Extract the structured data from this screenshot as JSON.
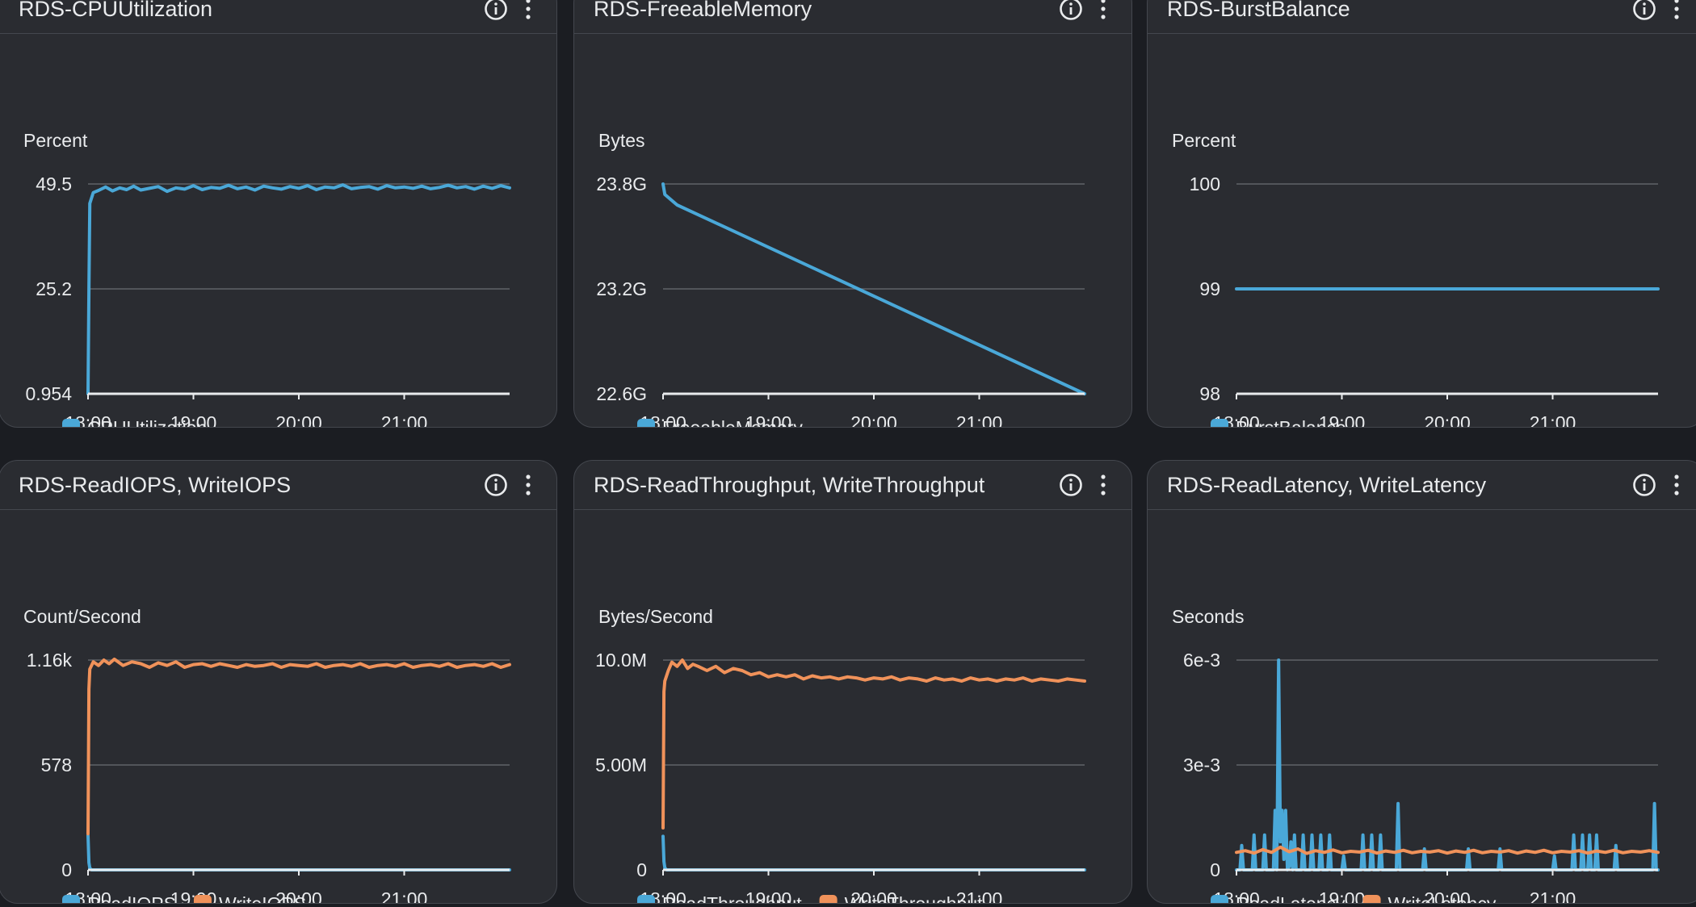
{
  "widgets": [
    {
      "title": "RDS-CPUUtilization",
      "chart_data": {
        "type": "line",
        "ylabel": "Percent",
        "ylim": [
          0.954,
          49.5
        ],
        "yticks": [
          "49.5",
          "25.2",
          "0.954"
        ],
        "xlim": [
          0,
          240
        ],
        "xticks": [
          "18:00",
          "19:00",
          "20:00",
          "21:00"
        ],
        "series": [
          {
            "name": "CPUUtilization",
            "color": "#4aa8d8",
            "x": [
              0,
              0.5,
              1,
              3,
              6,
              10,
              14,
              18,
              22,
              26,
              30,
              35,
              40,
              45,
              50,
              55,
              60,
              65,
              70,
              75,
              80,
              85,
              90,
              95,
              100,
              105,
              110,
              115,
              120,
              125,
              130,
              135,
              140,
              145,
              150,
              155,
              160,
              165,
              170,
              175,
              180,
              185,
              190,
              195,
              200,
              205,
              210,
              215,
              220,
              225,
              230,
              235,
              240
            ],
            "values": [
              0.954,
              25,
              45,
              47.5,
              48,
              48.8,
              47.9,
              48.6,
              48.2,
              49,
              48.1,
              48.5,
              48.9,
              47.8,
              48.6,
              48.3,
              49.1,
              48.2,
              48.7,
              48.5,
              49.2,
              48.4,
              48.8,
              48.1,
              49,
              48.6,
              48.3,
              48.9,
              48.5,
              49.1,
              48.2,
              48.8,
              48.6,
              49.3,
              48.4,
              48.7,
              48.9,
              48.3,
              49.1,
              48.6,
              48.8,
              48.5,
              49,
              48.4,
              48.7,
              49.2,
              48.6,
              48.9,
              48.3,
              49,
              48.5,
              49.1,
              48.6
            ]
          }
        ]
      }
    },
    {
      "title": "RDS-FreeableMemory",
      "chart_data": {
        "type": "line",
        "ylabel": "Bytes",
        "ylim": [
          22.6,
          23.8
        ],
        "yticks": [
          "23.8G",
          "23.2G",
          "22.6G"
        ],
        "xlim": [
          0,
          240
        ],
        "xticks": [
          "18:00",
          "19:00",
          "20:00",
          "21:00"
        ],
        "series": [
          {
            "name": "FreeableMemory",
            "color": "#4aa8d8",
            "x": [
              0,
              1,
              8,
              240
            ],
            "values": [
              23.8,
              23.74,
              23.68,
              22.6
            ]
          }
        ]
      }
    },
    {
      "title": "RDS-BurstBalance",
      "chart_data": {
        "type": "line",
        "ylabel": "Percent",
        "ylim": [
          98,
          100
        ],
        "yticks": [
          "100",
          "99",
          "98"
        ],
        "xlim": [
          0,
          240
        ],
        "xticks": [
          "18:00",
          "19:00",
          "20:00",
          "21:00"
        ],
        "series": [
          {
            "name": "BurstBalance",
            "color": "#4aa8d8",
            "x": [
              0,
              240
            ],
            "values": [
              99,
              99
            ]
          }
        ]
      }
    },
    {
      "title": "RDS-ReadIOPS, WriteIOPS",
      "chart_data": {
        "type": "line",
        "ylabel": "Count/Second",
        "ylim": [
          0,
          1160
        ],
        "yticks": [
          "1.16k",
          "578",
          "0"
        ],
        "xlim": [
          0,
          240
        ],
        "xticks": [
          "18:00",
          "19:00",
          "20:00",
          "21:00"
        ],
        "series": [
          {
            "name": "ReadIOPS",
            "color": "#4aa8d8",
            "x": [
              0,
              0.5,
              1,
              2,
              240
            ],
            "values": [
              190,
              40,
              10,
              0,
              0
            ]
          },
          {
            "name": "WriteIOPS",
            "color": "#f0925a",
            "x": [
              0,
              0.5,
              1,
              3,
              6,
              9,
              12,
              15,
              20,
              25,
              30,
              35,
              40,
              45,
              50,
              55,
              60,
              65,
              70,
              75,
              80,
              85,
              90,
              95,
              100,
              105,
              110,
              115,
              120,
              125,
              130,
              135,
              140,
              145,
              150,
              155,
              160,
              165,
              170,
              175,
              180,
              185,
              190,
              195,
              200,
              205,
              210,
              215,
              220,
              225,
              230,
              235,
              240
            ],
            "values": [
              200,
              1000,
              1110,
              1150,
              1130,
              1160,
              1140,
              1165,
              1130,
              1150,
              1140,
              1120,
              1145,
              1130,
              1150,
              1120,
              1135,
              1140,
              1125,
              1140,
              1130,
              1120,
              1135,
              1125,
              1130,
              1140,
              1120,
              1135,
              1130,
              1125,
              1140,
              1120,
              1130,
              1135,
              1125,
              1140,
              1120,
              1130,
              1135,
              1125,
              1140,
              1120,
              1130,
              1135,
              1125,
              1140,
              1120,
              1130,
              1135,
              1125,
              1140,
              1120,
              1135
            ]
          }
        ]
      }
    },
    {
      "title": "RDS-ReadThroughput, WriteThroughput",
      "chart_data": {
        "type": "line",
        "ylabel": "Bytes/Second",
        "ylim": [
          0,
          10000000
        ],
        "yticks": [
          "10.0M",
          "5.00M",
          "0"
        ],
        "xlim": [
          0,
          240
        ],
        "xticks": [
          "18:00",
          "19:00",
          "20:00",
          "21:00"
        ],
        "series": [
          {
            "name": "ReadThroughput",
            "color": "#4aa8d8",
            "x": [
              0,
              0.5,
              1,
              2,
              240
            ],
            "values": [
              1600000,
              400000,
              100000,
              0,
              0
            ]
          },
          {
            "name": "WriteThroughput",
            "color": "#f0925a",
            "x": [
              0,
              0.5,
              1,
              3,
              5,
              8,
              11,
              14,
              17,
              20,
              25,
              30,
              35,
              40,
              45,
              50,
              55,
              60,
              65,
              70,
              75,
              80,
              85,
              90,
              95,
              100,
              105,
              110,
              115,
              120,
              125,
              130,
              135,
              140,
              145,
              150,
              155,
              160,
              165,
              170,
              175,
              180,
              185,
              190,
              195,
              200,
              205,
              210,
              215,
              220,
              225,
              230,
              235,
              240
            ],
            "values": [
              2000000,
              8500000,
              9000000,
              9500000,
              9900000,
              9700000,
              10000000,
              9600000,
              9800000,
              9700000,
              9500000,
              9700000,
              9400000,
              9600000,
              9500000,
              9300000,
              9400000,
              9200000,
              9300000,
              9200000,
              9300000,
              9100000,
              9250000,
              9150000,
              9200000,
              9100000,
              9200000,
              9150000,
              9050000,
              9150000,
              9100000,
              9200000,
              9050000,
              9150000,
              9100000,
              9000000,
              9150000,
              9050000,
              9100000,
              9000000,
              9150000,
              9050000,
              9100000,
              9000000,
              9100000,
              9050000,
              9150000,
              9000000,
              9100000,
              9050000,
              9000000,
              9100000,
              9050000,
              9000000
            ]
          }
        ]
      }
    },
    {
      "title": "RDS-ReadLatency, WriteLatency",
      "chart_data": {
        "type": "line",
        "ylabel": "Seconds",
        "ylim": [
          0,
          0.006
        ],
        "yticks": [
          "6e-3",
          "3e-3",
          "0"
        ],
        "xlim": [
          0,
          240
        ],
        "xticks": [
          "18:00",
          "19:00",
          "20:00",
          "21:00"
        ],
        "series": [
          {
            "name": "ReadLatency",
            "color": "#4aa8d8",
            "x": [
              0,
              2,
              3,
              4,
              9,
              10,
              11,
              15,
              16,
              17,
              21,
              22,
              23,
              24,
              25,
              26,
              27,
              28,
              29,
              30,
              31,
              32,
              33,
              34,
              37,
              38,
              39,
              42,
              43,
              44,
              47,
              48,
              49,
              52,
              53,
              54,
              60,
              61,
              62,
              71,
              72,
              73,
              76,
              77,
              78,
              81,
              82,
              83,
              91,
              92,
              93,
              106,
              107,
              108,
              131,
              132,
              133,
              149,
              150,
              151,
              180,
              181,
              182,
              191,
              192,
              193,
              196,
              197,
              198,
              200,
              201,
              202,
              204,
              205,
              206,
              215,
              216,
              217,
              237,
              238,
              239,
              240
            ],
            "values": [
              0,
              0,
              0.0007,
              0,
              0,
              0.001,
              0,
              0,
              0.001,
              0,
              0,
              0.0017,
              0,
              0.006,
              0.0008,
              0.0017,
              0.0003,
              0.0017,
              0,
              0.0001,
              0.0008,
              0,
              0.001,
              0,
              0,
              0.001,
              0,
              0,
              0.001,
              0,
              0,
              0.001,
              0,
              0,
              0.001,
              0,
              0,
              0.0004,
              0,
              0,
              0.001,
              0,
              0,
              0.001,
              0,
              0,
              0.001,
              0,
              0,
              0.0019,
              0,
              0,
              0.0006,
              0,
              0,
              0.0006,
              0,
              0,
              0.0006,
              0,
              0,
              0.0004,
              0,
              0,
              0.001,
              0,
              0,
              0.001,
              0,
              0,
              0.001,
              0,
              0,
              0.001,
              0,
              0,
              0.0007,
              0,
              0,
              0.0019,
              0,
              0
            ]
          },
          {
            "name": "WriteLatency",
            "color": "#f0925a",
            "x": [
              0,
              5,
              10,
              15,
              20,
              25,
              30,
              35,
              40,
              45,
              50,
              55,
              60,
              65,
              70,
              75,
              80,
              85,
              90,
              95,
              100,
              105,
              110,
              115,
              120,
              125,
              130,
              135,
              140,
              145,
              150,
              155,
              160,
              165,
              170,
              175,
              180,
              185,
              190,
              195,
              200,
              205,
              210,
              215,
              220,
              225,
              230,
              235,
              240
            ],
            "values": [
              0.0005,
              0.00055,
              0.00048,
              0.00058,
              0.0005,
              0.00065,
              0.00052,
              0.0006,
              0.00047,
              0.00055,
              0.0005,
              0.00057,
              0.00049,
              0.00053,
              0.00051,
              0.00056,
              0.00048,
              0.00054,
              0.0005,
              0.00056,
              0.00049,
              0.00053,
              0.00051,
              0.00055,
              0.00048,
              0.00054,
              0.0005,
              0.00056,
              0.00049,
              0.00053,
              0.00051,
              0.00055,
              0.00048,
              0.00054,
              0.0005,
              0.00056,
              0.00049,
              0.00053,
              0.00051,
              0.00055,
              0.00048,
              0.00054,
              0.0005,
              0.00056,
              0.00049,
              0.00053,
              0.00051,
              0.00055,
              0.0005
            ]
          }
        ]
      }
    }
  ]
}
